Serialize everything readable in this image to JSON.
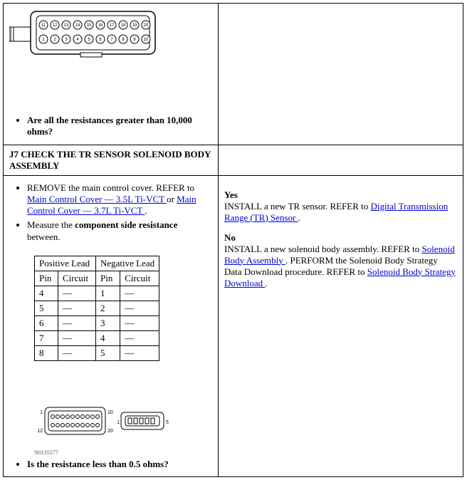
{
  "row1": {
    "question": "Are all the resistances greater than 10,000 ohms?"
  },
  "header": {
    "title": "J7 CHECK THE TR SENSOR SOLENOID BODY ASSEMBLY"
  },
  "row2": {
    "step1_prefix": "REMOVE the main control cover. REFER to ",
    "link1": "Main Control Cover — 3.5L Ti-VCT ",
    "or": "or ",
    "link2": "Main Control Cover — 3.7L Ti-VCT ",
    "period": ".",
    "step2_a": "Measure the ",
    "step2_b": "component side resistance",
    "step2_c": " between.",
    "table": {
      "pos": "Positive Lead",
      "neg": "Negative Lead",
      "pin": "Pin",
      "circuit": "Circuit",
      "rows": [
        {
          "p1": "4",
          "c1": "—",
          "p2": "1",
          "c2": "—"
        },
        {
          "p1": "5",
          "c1": "—",
          "p2": "2",
          "c2": "—"
        },
        {
          "p1": "6",
          "c1": "—",
          "p2": "3",
          "c2": "—"
        },
        {
          "p1": "7",
          "c1": "—",
          "p2": "4",
          "c2": "—"
        },
        {
          "p1": "8",
          "c1": "—",
          "p2": "5",
          "c2": "—"
        }
      ]
    },
    "caption": "N0135577",
    "question2": "Is the resistance less than 0.5 ohms?",
    "yes": "Yes",
    "yes_text_a": "INSTALL a new TR sensor. REFER to ",
    "yes_link": "Digital Transmission Range (TR) Sensor ",
    "yes_text_b": ".",
    "no": "No",
    "no_text_a": "INSTALL a new solenoid body assembly. REFER to ",
    "no_link1": "Solenoid Body Assembly ",
    "no_text_b": ". PERFORM the Solenoid Body Strategy Data Download procedure. REFER to ",
    "no_link2": "Solenoid Body Strategy Download ",
    "no_text_c": "."
  }
}
